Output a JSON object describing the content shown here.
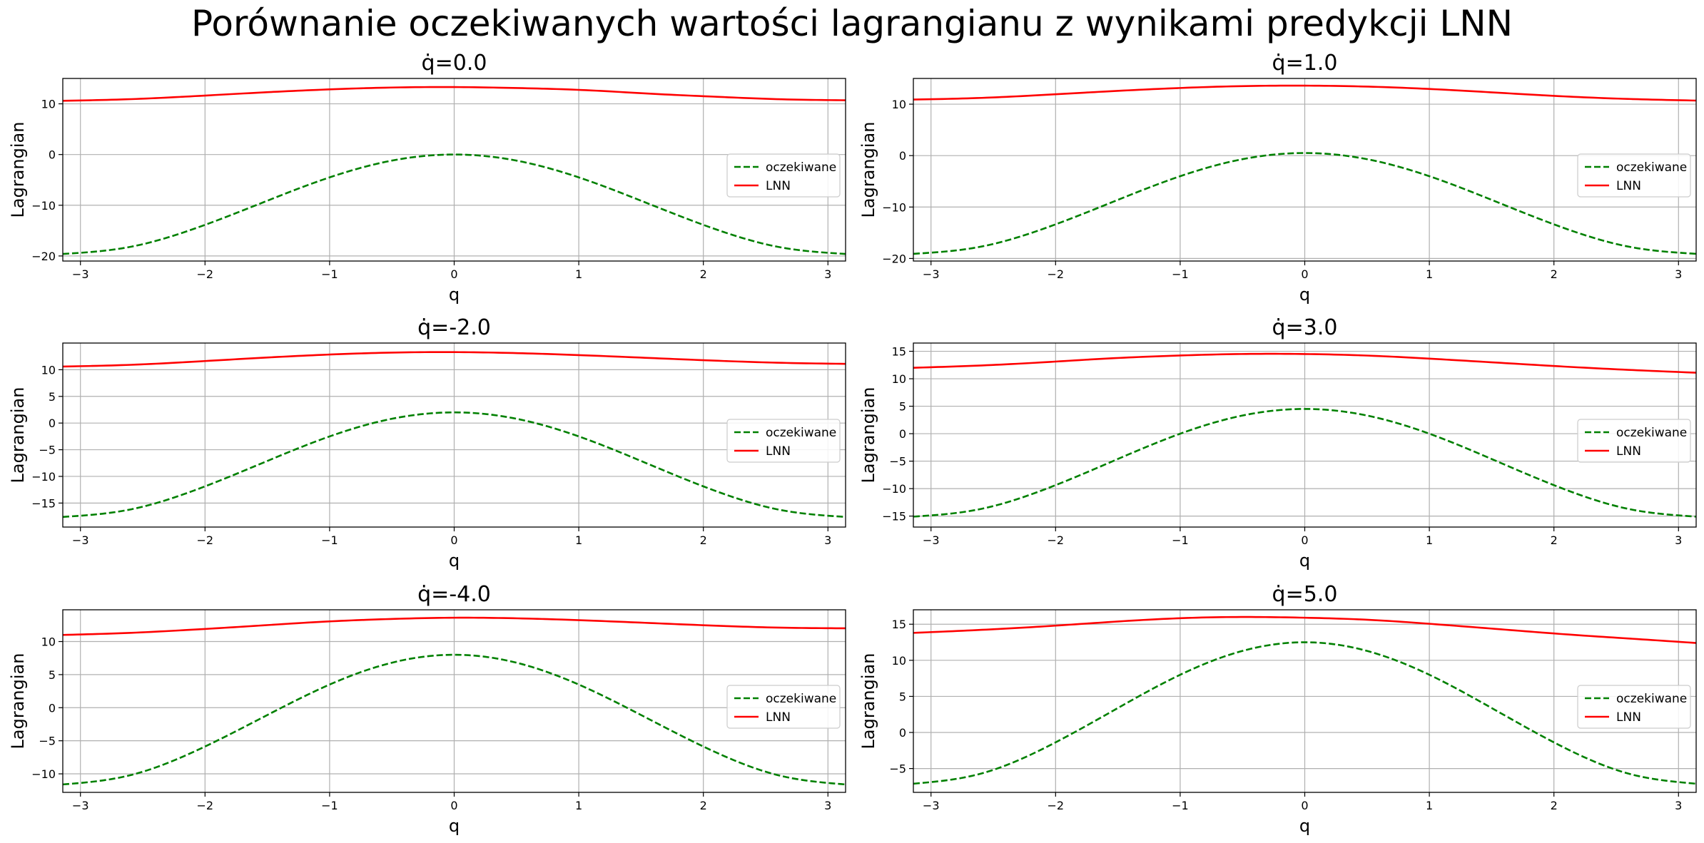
{
  "page_title": "Porównanie oczekiwanych wartości lagrangianu z wynikami predykcji LNN",
  "colors": {
    "expected": "#008000",
    "lnn": "#ff0000",
    "grid": "#b0b0b0"
  },
  "chart_data": [
    {
      "type": "line",
      "title": "q̇=0.0",
      "xlabel": "q",
      "ylabel": "Lagrangian",
      "xlim": [
        -3.1416,
        3.1416
      ],
      "ylim": [
        -21,
        15
      ],
      "xticks": [
        -3,
        -2,
        -1,
        0,
        1,
        2,
        3
      ],
      "xtick_labels": [
        "−3",
        "−2",
        "−1",
        "0",
        "1",
        "2",
        "3"
      ],
      "yticks": [
        -20,
        -10,
        0,
        10
      ],
      "ytick_labels": [
        "−20",
        "−10",
        "0",
        "10"
      ],
      "grid": true,
      "legend_position": "center-right",
      "x": [
        -3.1416,
        -2.618,
        -2.0944,
        -1.5708,
        -1.0472,
        -0.5236,
        0,
        0.5236,
        1.0472,
        1.5708,
        2.0944,
        2.618,
        3.1416
      ],
      "series": [
        {
          "name": "oczekiwane",
          "style": "dashed",
          "values": [
            -19.6,
            -18.29,
            -14.7,
            -9.8,
            -4.9,
            -1.31,
            0,
            -1.31,
            -4.9,
            -9.8,
            -14.7,
            -18.29,
            -19.6
          ]
        },
        {
          "name": "LNN",
          "style": "solid",
          "values": [
            10.6,
            10.9,
            11.5,
            12.2,
            12.8,
            13.2,
            13.3,
            13.1,
            12.7,
            12.0,
            11.4,
            10.9,
            10.7
          ]
        }
      ]
    },
    {
      "type": "line",
      "title": "q̇=1.0",
      "xlabel": "q",
      "ylabel": "Lagrangian",
      "xlim": [
        -3.1416,
        3.1416
      ],
      "ylim": [
        -20.5,
        15
      ],
      "xticks": [
        -3,
        -2,
        -1,
        0,
        1,
        2,
        3
      ],
      "xtick_labels": [
        "−3",
        "−2",
        "−1",
        "0",
        "1",
        "2",
        "3"
      ],
      "yticks": [
        -20,
        -10,
        0,
        10
      ],
      "ytick_labels": [
        "−20",
        "−10",
        "0",
        "10"
      ],
      "grid": true,
      "legend_position": "center-right",
      "x": [
        -3.1416,
        -2.618,
        -2.0944,
        -1.5708,
        -1.0472,
        -0.5236,
        0,
        0.5236,
        1.0472,
        1.5708,
        2.0944,
        2.618,
        3.1416
      ],
      "series": [
        {
          "name": "oczekiwane",
          "style": "dashed",
          "values": [
            -19.1,
            -17.79,
            -14.2,
            -9.3,
            -4.4,
            -0.81,
            0.5,
            -0.81,
            -4.4,
            -9.3,
            -14.2,
            -17.79,
            -19.1
          ]
        },
        {
          "name": "LNN",
          "style": "solid",
          "values": [
            10.9,
            11.2,
            11.8,
            12.5,
            13.1,
            13.5,
            13.6,
            13.4,
            12.9,
            12.2,
            11.5,
            11.0,
            10.7
          ]
        }
      ]
    },
    {
      "type": "line",
      "title": "q̇=-2.0",
      "xlabel": "q",
      "ylabel": "Lagrangian",
      "xlim": [
        -3.1416,
        3.1416
      ],
      "ylim": [
        -19.5,
        15
      ],
      "xticks": [
        -3,
        -2,
        -1,
        0,
        1,
        2,
        3
      ],
      "xtick_labels": [
        "−3",
        "−2",
        "−1",
        "0",
        "1",
        "2",
        "3"
      ],
      "yticks": [
        -15,
        -10,
        -5,
        0,
        5,
        10
      ],
      "ytick_labels": [
        "−15",
        "−10",
        "−5",
        "0",
        "5",
        "10"
      ],
      "grid": true,
      "legend_position": "center-right",
      "x": [
        -3.1416,
        -2.618,
        -2.0944,
        -1.5708,
        -1.0472,
        -0.5236,
        0,
        0.5236,
        1.0472,
        1.5708,
        2.0944,
        2.618,
        3.1416
      ],
      "series": [
        {
          "name": "oczekiwane",
          "style": "dashed",
          "values": [
            -17.6,
            -16.29,
            -12.7,
            -7.8,
            -2.9,
            0.69,
            2.0,
            0.69,
            -2.9,
            -7.8,
            -12.7,
            -16.29,
            -17.6
          ]
        },
        {
          "name": "LNN",
          "style": "solid",
          "values": [
            10.6,
            10.9,
            11.5,
            12.2,
            12.8,
            13.2,
            13.3,
            13.1,
            12.7,
            12.2,
            11.7,
            11.3,
            11.1
          ]
        }
      ]
    },
    {
      "type": "line",
      "title": "q̇=3.0",
      "xlabel": "q",
      "ylabel": "Lagrangian",
      "xlim": [
        -3.1416,
        3.1416
      ],
      "ylim": [
        -17,
        16.5
      ],
      "xticks": [
        -3,
        -2,
        -1,
        0,
        1,
        2,
        3
      ],
      "xtick_labels": [
        "−3",
        "−2",
        "−1",
        "0",
        "1",
        "2",
        "3"
      ],
      "yticks": [
        -15,
        -10,
        -5,
        0,
        5,
        10,
        15
      ],
      "ytick_labels": [
        "−15",
        "−10",
        "−5",
        "0",
        "5",
        "10",
        "15"
      ],
      "grid": true,
      "legend_position": "center-right",
      "x": [
        -3.1416,
        -2.618,
        -2.0944,
        -1.5708,
        -1.0472,
        -0.5236,
        0,
        0.5236,
        1.0472,
        1.5708,
        2.0944,
        2.618,
        3.1416
      ],
      "series": [
        {
          "name": "oczekiwane",
          "style": "dashed",
          "values": [
            -15.1,
            -13.79,
            -10.2,
            -5.3,
            -0.4,
            3.19,
            4.5,
            3.19,
            -0.4,
            -5.3,
            -10.2,
            -13.79,
            -15.1
          ]
        },
        {
          "name": "LNN",
          "style": "solid",
          "values": [
            12.0,
            12.4,
            13.0,
            13.7,
            14.2,
            14.5,
            14.5,
            14.2,
            13.6,
            12.9,
            12.2,
            11.6,
            11.1
          ]
        }
      ]
    },
    {
      "type": "line",
      "title": "q̇=-4.0",
      "xlabel": "q",
      "ylabel": "Lagrangian",
      "xlim": [
        -3.1416,
        3.1416
      ],
      "ylim": [
        -12.8,
        14.8
      ],
      "xticks": [
        -3,
        -2,
        -1,
        0,
        1,
        2,
        3
      ],
      "xtick_labels": [
        "−3",
        "−2",
        "−1",
        "0",
        "1",
        "2",
        "3"
      ],
      "yticks": [
        -10,
        -5,
        0,
        5,
        10
      ],
      "ytick_labels": [
        "−10",
        "−5",
        "0",
        "5",
        "10"
      ],
      "grid": true,
      "legend_position": "center-right",
      "x": [
        -3.1416,
        -2.618,
        -2.0944,
        -1.5708,
        -1.0472,
        -0.5236,
        0,
        0.5236,
        1.0472,
        1.5708,
        2.0944,
        2.618,
        3.1416
      ],
      "series": [
        {
          "name": "oczekiwane",
          "style": "dashed",
          "values": [
            -11.6,
            -10.29,
            -6.7,
            -1.8,
            3.1,
            6.69,
            8.0,
            6.69,
            3.1,
            -1.8,
            -6.7,
            -10.29,
            -11.6
          ]
        },
        {
          "name": "LNN",
          "style": "solid",
          "values": [
            11.0,
            11.3,
            11.8,
            12.4,
            13.0,
            13.4,
            13.6,
            13.5,
            13.2,
            12.8,
            12.4,
            12.1,
            12.0
          ]
        }
      ]
    },
    {
      "type": "line",
      "title": "q̇=5.0",
      "xlabel": "q",
      "ylabel": "Lagrangian",
      "xlim": [
        -3.1416,
        3.1416
      ],
      "ylim": [
        -8.3,
        17
      ],
      "xticks": [
        -3,
        -2,
        -1,
        0,
        1,
        2,
        3
      ],
      "xtick_labels": [
        "−3",
        "−2",
        "−1",
        "0",
        "1",
        "2",
        "3"
      ],
      "yticks": [
        -5,
        0,
        5,
        10,
        15
      ],
      "ytick_labels": [
        "−5",
        "0",
        "5",
        "10",
        "15"
      ],
      "grid": true,
      "legend_position": "center-right",
      "x": [
        -3.1416,
        -2.618,
        -2.0944,
        -1.5708,
        -1.0472,
        -0.5236,
        0,
        0.5236,
        1.0472,
        1.5708,
        2.0944,
        2.618,
        3.1416
      ],
      "series": [
        {
          "name": "oczekiwane",
          "style": "dashed",
          "values": [
            -7.1,
            -5.79,
            -2.2,
            2.7,
            7.6,
            11.19,
            12.5,
            11.19,
            7.6,
            2.7,
            -2.2,
            -5.79,
            -7.1
          ]
        },
        {
          "name": "LNN",
          "style": "solid",
          "values": [
            13.8,
            14.2,
            14.7,
            15.3,
            15.8,
            16.0,
            15.9,
            15.6,
            15.0,
            14.3,
            13.6,
            13.0,
            12.4
          ]
        }
      ]
    }
  ]
}
